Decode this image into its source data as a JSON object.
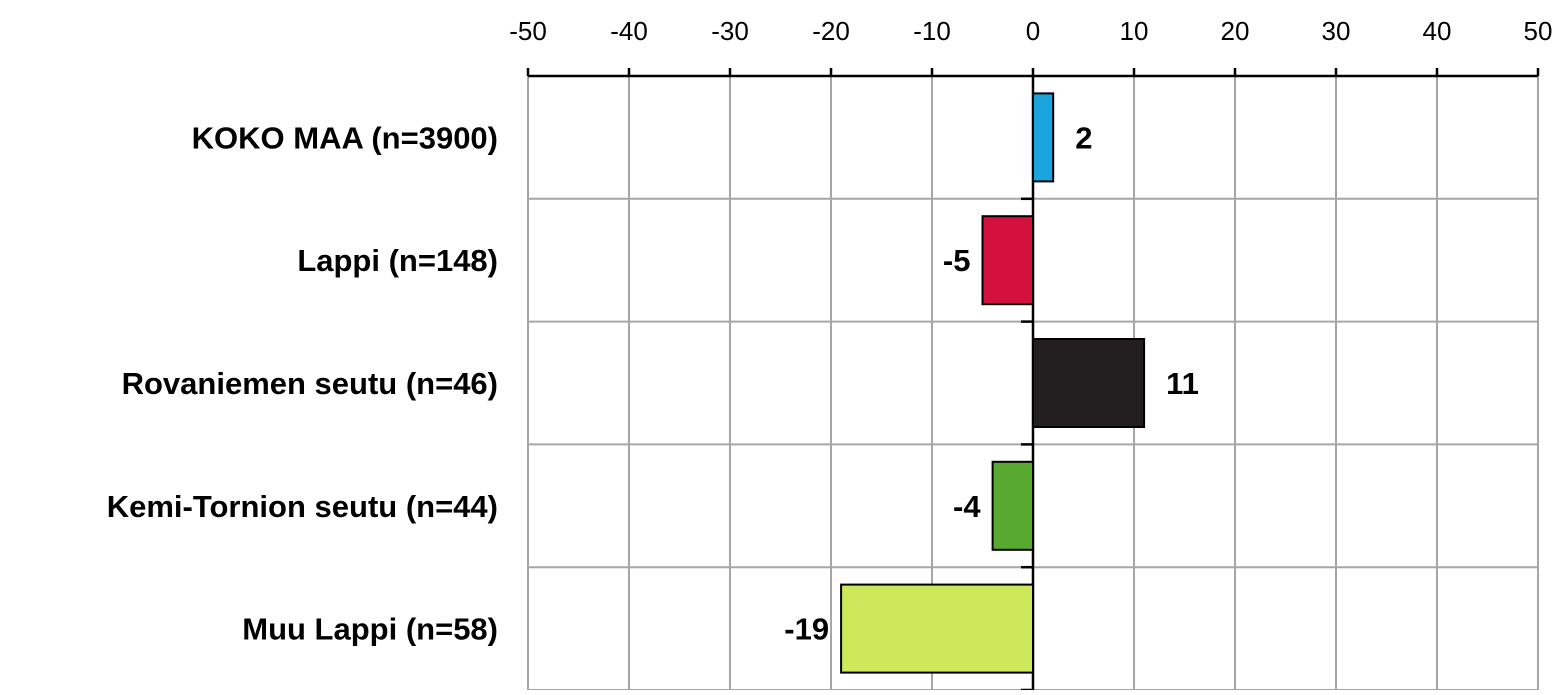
{
  "chart_data": {
    "type": "bar",
    "orientation": "horizontal",
    "categories": [
      "KOKO MAA (n=3900)",
      "Lappi (n=148)",
      "Rovaniemen seutu (n=46)",
      "Kemi-Tornion seutu (n=44)",
      "Muu Lappi (n=58)"
    ],
    "values": [
      2,
      -5,
      11,
      -4,
      -19
    ],
    "data_labels": [
      "2",
      "-5",
      "11",
      "-4",
      "-19"
    ],
    "bar_colors": [
      "#1aa3dc",
      "#d4103f",
      "#231f20",
      "#58a930",
      "#cde85a"
    ],
    "xlim": [
      -50,
      50
    ],
    "xticks": [
      -50,
      -40,
      -30,
      -20,
      -10,
      0,
      10,
      20,
      30,
      40,
      50
    ],
    "xtick_labels": [
      "-50",
      "-40",
      "-30",
      "-20",
      "-10",
      "0",
      "10",
      "20",
      "30",
      "40",
      "50"
    ],
    "axis_position": "top",
    "grid": true,
    "legend": "none",
    "title": "",
    "xlabel": "",
    "ylabel": ""
  }
}
